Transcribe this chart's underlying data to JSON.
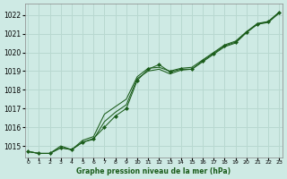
{
  "title": "Graphe pression niveau de la mer (hPa)",
  "bg_color": "#ceeae4",
  "grid_color": "#b8d8d0",
  "line_color": "#1a5c1a",
  "marker_color": "#1a5c1a",
  "x_ticks": [
    0,
    1,
    2,
    3,
    4,
    5,
    6,
    7,
    8,
    9,
    10,
    11,
    12,
    13,
    14,
    15,
    16,
    17,
    18,
    19,
    20,
    21,
    22,
    23
  ],
  "y_ticks": [
    1015,
    1016,
    1017,
    1018,
    1019,
    1020,
    1021,
    1022
  ],
  "ylim": [
    1014.4,
    1022.6
  ],
  "xlim": [
    -0.3,
    23.3
  ],
  "series1": [
    1014.7,
    1014.6,
    1014.6,
    1014.9,
    1014.8,
    1015.2,
    1015.4,
    1016.0,
    1016.6,
    1017.0,
    1018.5,
    1019.1,
    1019.35,
    1018.95,
    1019.1,
    1019.1,
    1019.55,
    1019.95,
    1020.35,
    1020.55,
    1021.1,
    1021.5,
    1021.65,
    1022.15
  ],
  "series2": [
    1014.7,
    1014.6,
    1014.6,
    1014.9,
    1014.8,
    1015.2,
    1015.35,
    1016.3,
    1016.8,
    1017.2,
    1018.6,
    1019.0,
    1019.1,
    1018.85,
    1019.05,
    1019.1,
    1019.5,
    1019.9,
    1020.3,
    1020.5,
    1021.05,
    1021.5,
    1021.6,
    1022.1
  ],
  "series3": [
    1014.7,
    1014.6,
    1014.6,
    1015.0,
    1014.8,
    1015.3,
    1015.5,
    1016.7,
    1017.1,
    1017.5,
    1018.7,
    1019.15,
    1019.2,
    1019.0,
    1019.15,
    1019.2,
    1019.6,
    1020.0,
    1020.4,
    1020.6,
    1021.1,
    1021.55,
    1021.65,
    1022.15
  ]
}
